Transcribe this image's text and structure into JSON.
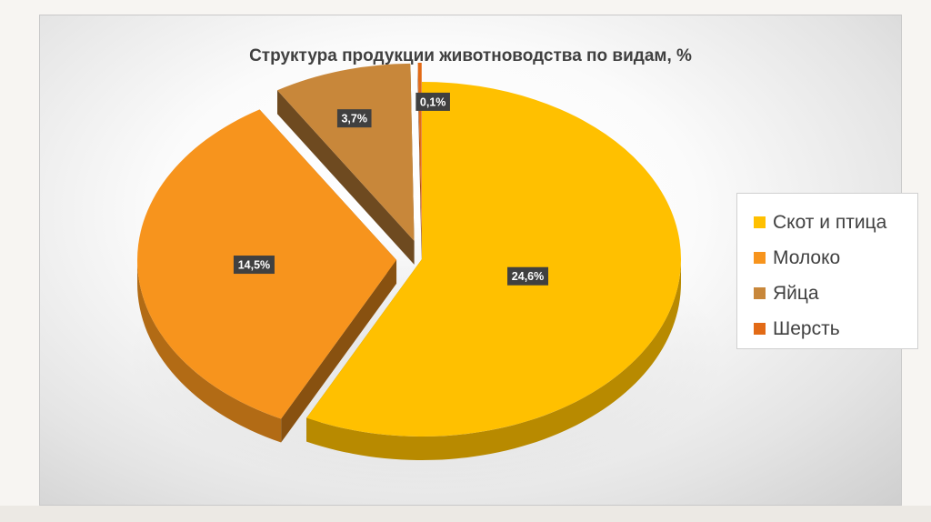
{
  "chart_data": {
    "type": "pie",
    "title": "Структура продукции животноводства по видам, %",
    "categories": [
      "Скот и птица",
      "Молоко",
      "Яйца",
      "Шерсть"
    ],
    "values": [
      24.6,
      14.5,
      3.7,
      0.1
    ],
    "data_labels": [
      "24,6%",
      "14,5%",
      "3,7%",
      "0,1%"
    ],
    "colors": [
      "#ffc000",
      "#f7941d",
      "#c8873a",
      "#e26a16"
    ],
    "legend_position": "right",
    "style": "3d-exploded"
  }
}
